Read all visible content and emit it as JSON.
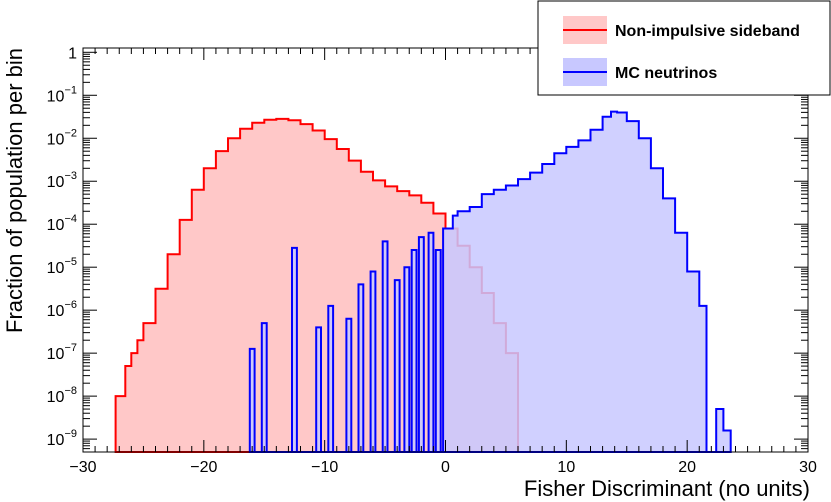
{
  "chart_data": {
    "type": "area",
    "title": "",
    "xlabel": "Fisher Discriminant (no units)",
    "ylabel": "Fraction of population per bin",
    "xlim": [
      -30,
      30
    ],
    "ylim_log10": [
      -9.3,
      0.1
    ],
    "yscale": "log",
    "grid": false,
    "legend_position": "top-right",
    "x_ticks": [
      -30,
      -20,
      -10,
      0,
      10,
      20,
      30
    ],
    "x_tick_labels": [
      "−30",
      "−20",
      "−10",
      "0",
      "10",
      "20",
      "30"
    ],
    "y_tick_labels": [
      {
        "base": "1",
        "exp": ""
      },
      {
        "base": "10",
        "exp": "−1"
      },
      {
        "base": "10",
        "exp": "−2"
      },
      {
        "base": "10",
        "exp": "−3"
      },
      {
        "base": "10",
        "exp": "−4"
      },
      {
        "base": "10",
        "exp": "−5"
      },
      {
        "base": "10",
        "exp": "−6"
      },
      {
        "base": "10",
        "exp": "−7"
      },
      {
        "base": "10",
        "exp": "−8"
      },
      {
        "base": "10",
        "exp": "−9"
      }
    ],
    "y_tick_values": [
      1,
      0.1,
      0.01,
      0.001,
      0.0001,
      1e-05,
      1e-06,
      1e-07,
      1e-08,
      1e-09
    ],
    "series": [
      {
        "name": "Non-impulsive sideband",
        "color": "#ff0000",
        "fill": "#ffc8c8",
        "log10_points": [
          [
            -27.3,
            -9.3
          ],
          [
            -27.3,
            -8.0
          ],
          [
            -26.7,
            -8.0
          ],
          [
            -26.5,
            -7.3
          ],
          [
            -26.0,
            -7.0
          ],
          [
            -25.5,
            -6.7
          ],
          [
            -25.0,
            -6.3
          ],
          [
            -24.0,
            -5.5
          ],
          [
            -23.0,
            -4.7
          ],
          [
            -22.0,
            -3.9
          ],
          [
            -21.0,
            -3.2
          ],
          [
            -20.0,
            -2.7
          ],
          [
            -19.0,
            -2.3
          ],
          [
            -18.0,
            -2.0
          ],
          [
            -17.0,
            -1.78
          ],
          [
            -16.0,
            -1.64
          ],
          [
            -15.0,
            -1.57
          ],
          [
            -14.0,
            -1.55
          ],
          [
            -13.0,
            -1.58
          ],
          [
            -12.0,
            -1.67
          ],
          [
            -11.0,
            -1.82
          ],
          [
            -10.0,
            -2.02
          ],
          [
            -9.0,
            -2.25
          ],
          [
            -8.0,
            -2.52
          ],
          [
            -7.0,
            -2.78
          ],
          [
            -6.0,
            -2.98
          ],
          [
            -5.0,
            -3.12
          ],
          [
            -4.0,
            -3.23
          ],
          [
            -3.0,
            -3.33
          ],
          [
            -2.0,
            -3.5
          ],
          [
            -1.0,
            -3.75
          ],
          [
            0.0,
            -4.1
          ],
          [
            1.0,
            -4.5
          ],
          [
            2.0,
            -5.0
          ],
          [
            3.0,
            -5.6
          ],
          [
            4.0,
            -6.3
          ],
          [
            5.0,
            -7.0
          ],
          [
            6.0,
            -7.8
          ],
          [
            6.0,
            -9.3
          ]
        ]
      },
      {
        "name": "MC neutrinos",
        "color": "#0000ff",
        "fill": "#c8c8ff",
        "log10_points": [
          [
            -16.2,
            -9.3
          ],
          [
            -16.2,
            -6.9
          ],
          [
            -15.8,
            -6.9
          ],
          [
            -15.8,
            -9.3
          ],
          [
            -15.2,
            -9.3
          ],
          [
            -15.2,
            -6.3
          ],
          [
            -14.8,
            -6.3
          ],
          [
            -14.8,
            -9.3
          ],
          [
            -12.7,
            -9.3
          ],
          [
            -12.7,
            -4.55
          ],
          [
            -12.3,
            -4.55
          ],
          [
            -12.3,
            -9.3
          ],
          [
            -10.7,
            -9.3
          ],
          [
            -10.7,
            -6.4
          ],
          [
            -10.3,
            -6.4
          ],
          [
            -10.3,
            -9.3
          ],
          [
            -9.7,
            -9.3
          ],
          [
            -9.7,
            -5.9
          ],
          [
            -9.3,
            -5.9
          ],
          [
            -9.3,
            -9.3
          ],
          [
            -8.2,
            -9.3
          ],
          [
            -8.2,
            -6.2
          ],
          [
            -7.8,
            -6.2
          ],
          [
            -7.8,
            -9.3
          ],
          [
            -7.2,
            -9.3
          ],
          [
            -7.2,
            -5.4
          ],
          [
            -6.8,
            -5.4
          ],
          [
            -6.8,
            -9.3
          ],
          [
            -6.2,
            -9.3
          ],
          [
            -6.2,
            -5.1
          ],
          [
            -5.8,
            -5.1
          ],
          [
            -5.8,
            -9.3
          ],
          [
            -5.2,
            -9.3
          ],
          [
            -5.2,
            -4.4
          ],
          [
            -4.8,
            -4.4
          ],
          [
            -4.8,
            -9.3
          ],
          [
            -4.2,
            -9.3
          ],
          [
            -4.2,
            -5.3
          ],
          [
            -3.8,
            -5.3
          ],
          [
            -3.8,
            -9.3
          ],
          [
            -3.4,
            -9.3
          ],
          [
            -3.4,
            -5.0
          ],
          [
            -3.0,
            -5.0
          ],
          [
            -3.0,
            -9.3
          ],
          [
            -2.8,
            -9.3
          ],
          [
            -2.8,
            -4.6
          ],
          [
            -2.4,
            -4.6
          ],
          [
            -2.4,
            -9.3
          ],
          [
            -2.2,
            -9.3
          ],
          [
            -2.2,
            -4.3
          ],
          [
            -1.8,
            -4.3
          ],
          [
            -1.8,
            -9.3
          ],
          [
            -1.4,
            -9.3
          ],
          [
            -1.4,
            -4.2
          ],
          [
            -1.0,
            -4.2
          ],
          [
            -1.0,
            -9.3
          ],
          [
            -0.8,
            -9.3
          ],
          [
            -0.8,
            -4.6
          ],
          [
            -0.4,
            -4.6
          ],
          [
            -0.4,
            -9.3
          ],
          [
            -0.2,
            -9.3
          ],
          [
            -0.2,
            -4.1
          ],
          [
            0.2,
            -4.1
          ],
          [
            0.6,
            -3.8
          ],
          [
            1.0,
            -3.7
          ],
          [
            2.0,
            -3.6
          ],
          [
            3.0,
            -3.3
          ],
          [
            4.0,
            -3.2
          ],
          [
            5.0,
            -3.1
          ],
          [
            6.0,
            -2.95
          ],
          [
            7.0,
            -2.8
          ],
          [
            8.0,
            -2.6
          ],
          [
            9.0,
            -2.35
          ],
          [
            10.0,
            -2.2
          ],
          [
            11.0,
            -2.05
          ],
          [
            12.0,
            -1.8
          ],
          [
            13.0,
            -1.5
          ],
          [
            13.7,
            -1.38
          ],
          [
            14.2,
            -1.4
          ],
          [
            15.0,
            -1.6
          ],
          [
            16.0,
            -2.0
          ],
          [
            17.0,
            -2.7
          ],
          [
            18.0,
            -3.4
          ],
          [
            19.0,
            -4.2
          ],
          [
            20.0,
            -5.1
          ],
          [
            21.0,
            -5.9
          ],
          [
            21.6,
            -6.5
          ],
          [
            21.6,
            -9.3
          ],
          [
            22.4,
            -9.3
          ],
          [
            22.4,
            -8.3
          ],
          [
            23.0,
            -8.8
          ],
          [
            23.6,
            -9.3
          ]
        ]
      }
    ]
  }
}
